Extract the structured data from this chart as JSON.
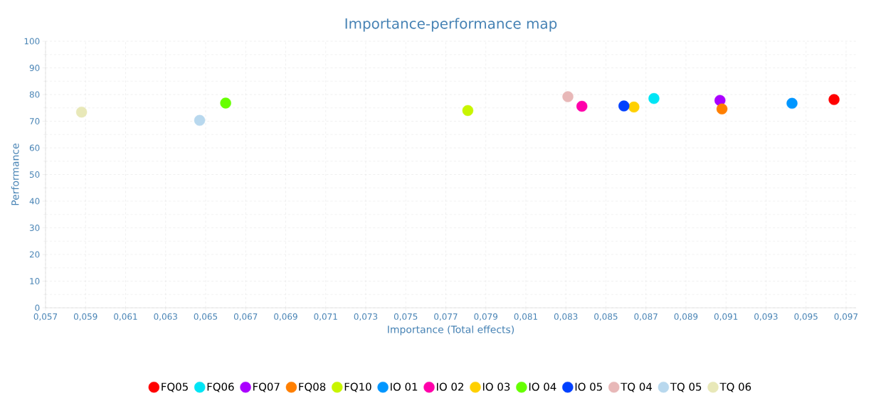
{
  "chart_data": {
    "type": "scatter",
    "title": "Importance-performance map",
    "xlabel": "Importance (Total effects)",
    "ylabel": "Performance",
    "xlim": [
      0.057,
      0.0975
    ],
    "ylim": [
      0,
      100
    ],
    "xticks": [
      {
        "value": 0.057,
        "label": "0,057"
      },
      {
        "value": 0.059,
        "label": "0,059"
      },
      {
        "value": 0.061,
        "label": "0,061"
      },
      {
        "value": 0.063,
        "label": "0,063"
      },
      {
        "value": 0.065,
        "label": "0,065"
      },
      {
        "value": 0.067,
        "label": "0,067"
      },
      {
        "value": 0.069,
        "label": "0,069"
      },
      {
        "value": 0.071,
        "label": "0,071"
      },
      {
        "value": 0.073,
        "label": "0,073"
      },
      {
        "value": 0.075,
        "label": "0,075"
      },
      {
        "value": 0.077,
        "label": "0,077"
      },
      {
        "value": 0.079,
        "label": "0,079"
      },
      {
        "value": 0.081,
        "label": "0,081"
      },
      {
        "value": 0.083,
        "label": "0,083"
      },
      {
        "value": 0.085,
        "label": "0,085"
      },
      {
        "value": 0.087,
        "label": "0,087"
      },
      {
        "value": 0.089,
        "label": "0,089"
      },
      {
        "value": 0.091,
        "label": "0,091"
      },
      {
        "value": 0.093,
        "label": "0,093"
      },
      {
        "value": 0.095,
        "label": "0,095"
      },
      {
        "value": 0.097,
        "label": "0,097"
      }
    ],
    "yticks": [
      0,
      10,
      20,
      30,
      40,
      50,
      60,
      70,
      80,
      90,
      100
    ],
    "grid": true,
    "legend": "bottom",
    "series": [
      {
        "name": "FQ05",
        "color": "#ff0000",
        "x": [
          0.0964
        ],
        "values": [
          78.1
        ]
      },
      {
        "name": "FQ06",
        "color": "#00e5f5",
        "x": [
          0.0874
        ],
        "values": [
          78.5
        ]
      },
      {
        "name": "FQ07",
        "color": "#aa00ff",
        "x": [
          0.0907
        ],
        "values": [
          77.8
        ]
      },
      {
        "name": "FQ08",
        "color": "#ff7f00",
        "x": [
          0.0908
        ],
        "values": [
          74.6
        ]
      },
      {
        "name": "FQ10",
        "color": "#c8f500",
        "x": [
          0.0781
        ],
        "values": [
          74.0
        ]
      },
      {
        "name": "IO 01",
        "color": "#0096ff",
        "x": [
          0.0943
        ],
        "values": [
          76.7
        ]
      },
      {
        "name": "IO 02",
        "color": "#ff00aa",
        "x": [
          0.0838
        ],
        "values": [
          75.6
        ]
      },
      {
        "name": "IO 03",
        "color": "#ffd000",
        "x": [
          0.0864
        ],
        "values": [
          75.3
        ]
      },
      {
        "name": "IO 04",
        "color": "#66ff00",
        "x": [
          0.066
        ],
        "values": [
          76.8
        ]
      },
      {
        "name": "IO 05",
        "color": "#0040ff",
        "x": [
          0.0859
        ],
        "values": [
          75.7
        ]
      },
      {
        "name": "TQ 04",
        "color": "#e8b8b8",
        "x": [
          0.0831
        ],
        "values": [
          79.2
        ]
      },
      {
        "name": "TQ 05",
        "color": "#b8d8ee",
        "x": [
          0.0647
        ],
        "values": [
          70.3
        ]
      },
      {
        "name": "TQ 06",
        "color": "#e8e8b8",
        "x": [
          0.0588
        ],
        "values": [
          73.4
        ]
      }
    ]
  }
}
